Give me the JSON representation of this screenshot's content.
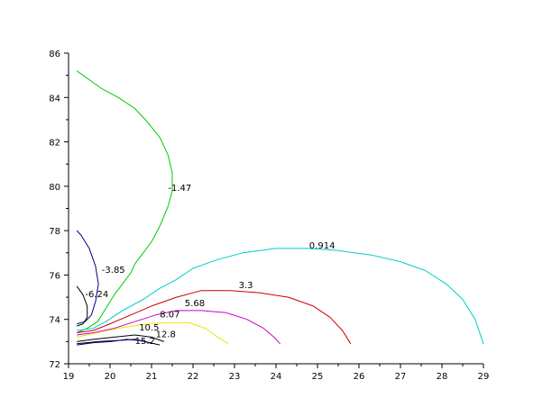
{
  "chart_data": {
    "type": "line",
    "title": "",
    "xlabel": "",
    "ylabel": "",
    "xlim": [
      19,
      29
    ],
    "ylim": [
      72,
      86
    ],
    "x_ticks": [
      19,
      20,
      21,
      22,
      23,
      24,
      25,
      26,
      27,
      28,
      29
    ],
    "x_tick_labels": [
      "19",
      "20",
      "21",
      "22",
      "23",
      "24",
      "25",
      "26",
      "27",
      "28",
      "29"
    ],
    "y_ticks": [
      72,
      74,
      76,
      78,
      80,
      82,
      84,
      86
    ],
    "y_tick_labels": [
      "72",
      "74",
      "76",
      "78",
      "80",
      "82",
      "84",
      "86"
    ],
    "grid": false,
    "legend": "none",
    "series": [
      {
        "level": "-1.47",
        "color": "#00cc00",
        "label_at": [
          19.5,
          73.8,
          21.4,
          79.8
        ],
        "points": [
          [
            19.2,
            73.4
          ],
          [
            19.45,
            73.6
          ],
          [
            19.7,
            73.9
          ],
          [
            19.9,
            74.5
          ],
          [
            20.1,
            75.1
          ],
          [
            20.3,
            75.6
          ],
          [
            20.5,
            76.1
          ],
          [
            20.6,
            76.5
          ],
          [
            20.8,
            77.0
          ],
          [
            21.0,
            77.5
          ],
          [
            21.2,
            78.2
          ],
          [
            21.4,
            79.1
          ],
          [
            21.5,
            79.8
          ],
          [
            21.5,
            80.6
          ],
          [
            21.4,
            81.4
          ],
          [
            21.2,
            82.2
          ],
          [
            20.9,
            82.9
          ],
          [
            20.6,
            83.5
          ],
          [
            20.2,
            84.0
          ],
          [
            19.8,
            84.4
          ],
          [
            19.5,
            84.8
          ],
          [
            19.2,
            85.2
          ]
        ]
      },
      {
        "level": "-3.85",
        "color": "#000080",
        "label_at": [
          19.5,
          73.8,
          19.8,
          76.1
        ],
        "points": [
          [
            19.2,
            73.8
          ],
          [
            19.4,
            73.9
          ],
          [
            19.55,
            74.2
          ],
          [
            19.65,
            74.8
          ],
          [
            19.72,
            75.6
          ],
          [
            19.65,
            76.4
          ],
          [
            19.5,
            77.2
          ],
          [
            19.3,
            77.8
          ],
          [
            19.2,
            78.0
          ]
        ]
      },
      {
        "level": "-6.24",
        "color": "#000000",
        "label_at": [
          19.5,
          73.8,
          19.4,
          75.0
        ],
        "points": [
          [
            19.2,
            73.7
          ],
          [
            19.35,
            73.8
          ],
          [
            19.45,
            74.1
          ],
          [
            19.45,
            74.6
          ],
          [
            19.35,
            75.1
          ],
          [
            19.2,
            75.5
          ]
        ]
      },
      {
        "level": "0.914",
        "color": "#00cccc",
        "label_at": [
          19.5,
          73.8,
          24.8,
          77.2
        ],
        "points": [
          [
            19.2,
            73.5
          ],
          [
            19.6,
            73.6
          ],
          [
            19.9,
            73.9
          ],
          [
            20.3,
            74.4
          ],
          [
            20.8,
            74.9
          ],
          [
            21.2,
            75.4
          ],
          [
            21.6,
            75.8
          ],
          [
            22.0,
            76.3
          ],
          [
            22.6,
            76.7
          ],
          [
            23.2,
            77.0
          ],
          [
            24.0,
            77.2
          ],
          [
            24.8,
            77.2
          ],
          [
            25.5,
            77.1
          ],
          [
            26.3,
            76.9
          ],
          [
            27.0,
            76.6
          ],
          [
            27.6,
            76.2
          ],
          [
            28.1,
            75.6
          ],
          [
            28.5,
            74.9
          ],
          [
            28.8,
            74.0
          ],
          [
            29.0,
            72.9
          ]
        ]
      },
      {
        "level": "3.3",
        "color": "#cc0000",
        "label_at": [
          19.5,
          73.8,
          23.1,
          75.4
        ],
        "points": [
          [
            19.2,
            73.4
          ],
          [
            19.6,
            73.5
          ],
          [
            20.0,
            73.8
          ],
          [
            20.5,
            74.2
          ],
          [
            21.0,
            74.6
          ],
          [
            21.6,
            75.0
          ],
          [
            22.2,
            75.3
          ],
          [
            22.9,
            75.3
          ],
          [
            23.6,
            75.2
          ],
          [
            24.3,
            75.0
          ],
          [
            24.9,
            74.6
          ],
          [
            25.3,
            74.1
          ],
          [
            25.6,
            73.5
          ],
          [
            25.8,
            72.9
          ]
        ]
      },
      {
        "level": "5.68",
        "color": "#cc00cc",
        "label_at": [
          19.5,
          73.8,
          21.8,
          74.6
        ],
        "points": [
          [
            19.2,
            73.3
          ],
          [
            19.6,
            73.4
          ],
          [
            20.1,
            73.6
          ],
          [
            20.6,
            73.9
          ],
          [
            21.1,
            74.2
          ],
          [
            21.6,
            74.4
          ],
          [
            22.2,
            74.4
          ],
          [
            22.8,
            74.3
          ],
          [
            23.3,
            74.0
          ],
          [
            23.7,
            73.6
          ],
          [
            23.95,
            73.2
          ],
          [
            24.1,
            72.9
          ]
        ]
      },
      {
        "level": "8.07",
        "color": "#e8e800",
        "label_at": [
          19.5,
          73.8,
          21.2,
          74.1
        ],
        "points": [
          [
            19.2,
            73.2
          ],
          [
            19.7,
            73.4
          ],
          [
            20.2,
            73.6
          ],
          [
            20.7,
            73.75
          ],
          [
            21.3,
            73.85
          ],
          [
            21.9,
            73.85
          ],
          [
            22.3,
            73.6
          ],
          [
            22.6,
            73.2
          ],
          [
            22.85,
            72.9
          ]
        ]
      },
      {
        "level": "10.5",
        "color": "#000000",
        "label_at": [
          19.5,
          73.8,
          20.7,
          73.5
        ],
        "points": [
          [
            19.2,
            73.0
          ],
          [
            19.6,
            73.1
          ],
          [
            20.1,
            73.2
          ],
          [
            20.6,
            73.3
          ],
          [
            21.0,
            73.2
          ],
          [
            21.3,
            73.0
          ]
        ]
      },
      {
        "level": "12.8",
        "color": "#000000",
        "label_at": [
          19.5,
          73.8,
          21.1,
          73.2
        ],
        "points": [
          [
            19.2,
            72.9
          ],
          [
            19.7,
            73.0
          ],
          [
            20.2,
            73.05
          ],
          [
            20.6,
            73.1
          ],
          [
            21.2,
            72.85
          ]
        ]
      },
      {
        "level": "15.2",
        "color": "#000080",
        "label_at": [
          19.5,
          73.8,
          20.6,
          72.9
        ],
        "points": [
          [
            19.2,
            72.85
          ],
          [
            19.6,
            72.95
          ],
          [
            20.0,
            73.0
          ],
          [
            20.4,
            73.1
          ],
          [
            20.7,
            73.05
          ],
          [
            20.95,
            72.95
          ]
        ]
      }
    ]
  }
}
